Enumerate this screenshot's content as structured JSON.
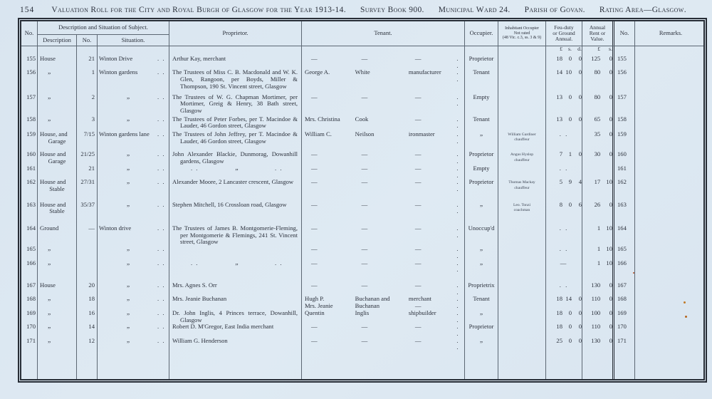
{
  "page": {
    "page_number": "154",
    "title_segments": [
      "Valuation Roll for the City and Royal Burgh of Glasgow for the Year 1913-14.",
      "Survey Book 900.",
      "Municipal Ward 24.",
      "Parish of Govan.",
      "Rating Area—Glasgow."
    ]
  },
  "table": {
    "headers": {
      "no_left": "No.",
      "group": "Description and Situation of Subject.",
      "description": "Description",
      "street_no": "No.",
      "situation": "Situation.",
      "proprietor": "Proprietor.",
      "tenant": "Tenant.",
      "occupier": "Occupier.",
      "inhabitant_lines": [
        "Inhabitant Occupier",
        "Not rated",
        "(48 Vic. c.3, ss. 3 & 9)"
      ],
      "feu_lines": [
        "Feu-duty",
        "or Ground",
        "Annual."
      ],
      "rent_lines": [
        "Annual",
        "Rent or",
        "Value."
      ],
      "no_right": "No.",
      "remarks": "Remarks."
    },
    "currency": {
      "feu": [
        "£",
        "s.",
        "d."
      ],
      "rent": [
        "£",
        "s."
      ]
    },
    "rows": [
      {
        "no": "155",
        "desc": [
          "House"
        ],
        "num": "21",
        "situation": "Winton Drive",
        "prop": "Arthur Kay, merchant",
        "t1": "—",
        "t2": "—",
        "t3": "—",
        "occ": "Proprietor",
        "feu": [
          "18",
          "0",
          "0"
        ],
        "rent": [
          "125",
          "0"
        ]
      },
      {
        "no": "156",
        "desc": [
          "„"
        ],
        "num": "1",
        "situation": "Winton gardens",
        "prop": "The Trustees of Miss C. B. Macdonald and W. K. Glen, Rangoon, per Boyds, Miller & Thompson, 190 St. Vincent street, Glasgow",
        "t1": "George A.",
        "t2": "White",
        "t3": "manufacturer",
        "occ": "Tenant",
        "feu": [
          "14",
          "10",
          "0"
        ],
        "rent": [
          "80",
          "0"
        ]
      },
      {
        "no": "157",
        "desc": [
          "„"
        ],
        "num": "2",
        "situation": "„",
        "prop": "The Trustees of W. G. Chapman Mortimer, per Mortimer, Greig & Henry, 38 Bath street, Glasgow",
        "t1": "—",
        "t2": "—",
        "t3": "—",
        "occ": "Empty",
        "feu": [
          "13",
          "0",
          "0"
        ],
        "rent": [
          "80",
          "0"
        ]
      },
      {
        "no": "158",
        "desc": [
          "„"
        ],
        "num": "3",
        "situation": "„",
        "prop": "The Trustees of Peter Forbes, per T. Macindoe & Lauder, 46 Gordon street, Glasgow",
        "t1": "Mrs. Christina",
        "t2": "Cook",
        "t3": "—",
        "occ": "Tenant",
        "feu": [
          "13",
          "0",
          "0"
        ],
        "rent": [
          "65",
          "0"
        ]
      },
      {
        "no": "159",
        "desc": [
          "House, and",
          "Garage"
        ],
        "num": "7/15",
        "situation": "Winton gardens lane",
        "prop": "The Trustees of John Jeffrey, per T. Macindoe & Lauder, 46 Gordon street, Glasgow",
        "t1": "William C.",
        "t2": "Neilson",
        "t3": "ironmaster",
        "occ": "„",
        "inh": [
          "William Gardiner",
          "chauffeur"
        ],
        "feu_mark": ". .",
        "rent": [
          "35",
          "0"
        ]
      },
      {
        "no": "160",
        "desc": [
          "House and",
          "Garage"
        ],
        "num": "21/25",
        "situation": "„",
        "prop": "John Alexander Blackie, Dunmorag, Dowanhill gardens, Glasgow",
        "t1": "—",
        "t2": "—",
        "t3": "—",
        "occ": "Proprietor",
        "inh": [
          "Angus Hyslop",
          "chauffeur"
        ],
        "feu": [
          "7",
          "1",
          "0"
        ],
        "rent": [
          "30",
          "0"
        ]
      },
      {
        "no": "161",
        "desc": [],
        "num": "21",
        "situation": "„",
        "prop_ditto": true,
        "t1": "—",
        "t2": "—",
        "t3": "—",
        "occ": "Empty",
        "feu_mark": ". .",
        "rent": null
      },
      {
        "no": "162",
        "desc": [
          "House and",
          "Stable"
        ],
        "num": "27/31",
        "situation": "„",
        "prop": "Alexander Moore, 2 Lancaster crescent, Glasgow",
        "t1": "—",
        "t2": "—",
        "t3": "—",
        "occ": "Proprietor",
        "inh": [
          "Thomas Mackay",
          "chauffeur"
        ],
        "feu": [
          "5",
          "9",
          "4"
        ],
        "rent": [
          "17",
          "10"
        ]
      },
      {
        "no": "163",
        "desc": [
          "House and",
          "Stable"
        ],
        "num": "35/37",
        "situation": "„",
        "prop": "Stephen Mitchell, 16 Crossloan road, Glasgow",
        "t1": "—",
        "t2": "—",
        "t3": "—",
        "occ": "„",
        "inh": [
          "Leo. Tonzi",
          "coachman"
        ],
        "feu": [
          "8",
          "0",
          "6"
        ],
        "rent": [
          "26",
          "0"
        ]
      },
      {
        "no": "164",
        "desc": [
          "Ground"
        ],
        "num": "—",
        "situation": "Winton drive",
        "prop": "The Trustees of James B. Montgomerie-Fleming, per Montgomerie & Flemings, 241 St. Vincent street, Glasgow",
        "t1": "—",
        "t2": "—",
        "t3": "—",
        "occ": "Unoccup'd",
        "feu_mark": ". .",
        "rent": [
          "1",
          "10"
        ]
      },
      {
        "no": "165",
        "desc": [
          "„"
        ],
        "num": "",
        "situation": "„",
        "prop": "",
        "t1": "—",
        "t2": "—",
        "t3": "—",
        "occ": "„",
        "feu_mark": ". .",
        "rent": [
          "1",
          "10"
        ]
      },
      {
        "no": "166",
        "desc": [
          "„"
        ],
        "num": "",
        "situation": "„",
        "prop_ditto": true,
        "t1": "—",
        "t2": "—",
        "t3": "—",
        "occ": "„",
        "feu_mark": "—",
        "rent": [
          "1",
          "10"
        ]
      },
      {
        "no": "167",
        "desc": [
          "House"
        ],
        "num": "20",
        "situation": "„",
        "prop": "Mrs. Agnes S. Orr",
        "t1": "—",
        "t2": "—",
        "t3": "—",
        "occ": "Proprietrix",
        "feu_mark": ". .",
        "rent": [
          "130",
          "0"
        ]
      },
      {
        "no": "168",
        "desc": [
          "„"
        ],
        "num": "18",
        "situation": "„",
        "prop": "Mrs. Jeanie Buchanan",
        "t1": [
          "Hugh P.",
          "Mrs. Jeanie"
        ],
        "t2": [
          "Buchanan and",
          "Buchanan"
        ],
        "t3": [
          "merchant",
          "—"
        ],
        "occ": "Tenant",
        "feu": [
          "18",
          "14",
          "0"
        ],
        "rent": [
          "110",
          "0"
        ]
      },
      {
        "no": "169",
        "desc": [
          "„"
        ],
        "num": "16",
        "situation": "„",
        "prop": "Dr. John Inglis, 4 Princes terrace, Dowanhill, Glasgow",
        "t1": "Quentin",
        "t2": "Inglis",
        "t3": "shipbuilder",
        "occ": "„",
        "feu": [
          "18",
          "0",
          "0"
        ],
        "rent": [
          "100",
          "0"
        ]
      },
      {
        "no": "170",
        "desc": [
          "„"
        ],
        "num": "14",
        "situation": "„",
        "prop": "Robert D. M'Gregor, East India merchant",
        "t1": "—",
        "t2": "—",
        "t3": "—",
        "occ": "Proprietor",
        "feu": [
          "18",
          "0",
          "0"
        ],
        "rent": [
          "110",
          "0"
        ]
      },
      {
        "no": "171",
        "desc": [
          "„"
        ],
        "num": "12",
        "situation": "„",
        "prop": "William G. Henderson",
        "t1": "—",
        "t2": "—",
        "t3": "—",
        "occ": "„",
        "feu": [
          "25",
          "0",
          "0"
        ],
        "rent": [
          "130",
          "0"
        ]
      }
    ],
    "cell_dots": ". .",
    "ditto_mark": "„"
  }
}
